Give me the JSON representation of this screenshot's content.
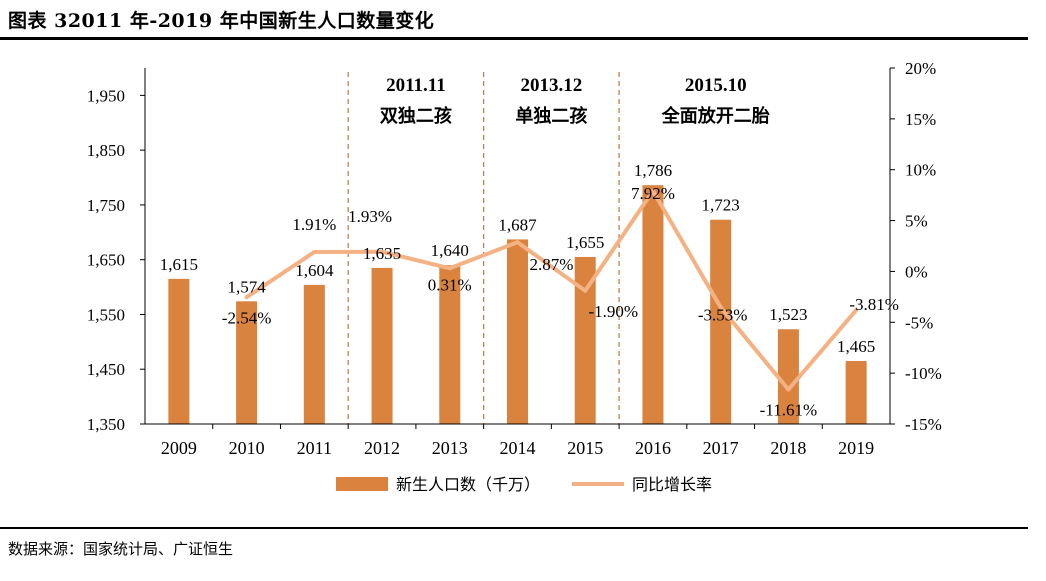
{
  "figure": {
    "title": "图表 32011 年-2019 年中国新生人口数量变化",
    "source": "数据来源：国家统计局、广证恒生"
  },
  "chart_data": {
    "type": "bar",
    "categories": [
      "2009",
      "2010",
      "2011",
      "2012",
      "2013",
      "2014",
      "2015",
      "2016",
      "2017",
      "2018",
      "2019"
    ],
    "series": [
      {
        "name": "新生人口数（千万）",
        "type": "bar",
        "axis": "left",
        "color": "#D9833F",
        "values": [
          1615,
          1574,
          1604,
          1635,
          1640,
          1687,
          1655,
          1786,
          1723,
          1523,
          1465
        ],
        "labels": [
          "1,615",
          "1,574",
          "1,604",
          "1,635",
          "1,640",
          "1,687",
          "1,655",
          "1,786",
          "1,723",
          "1,523",
          "1,465"
        ]
      },
      {
        "name": "同比增长率",
        "type": "line",
        "axis": "right",
        "color": "#F4B183",
        "values": [
          null,
          -2.54,
          1.91,
          1.93,
          0.31,
          2.87,
          -1.9,
          7.92,
          -3.53,
          -11.61,
          -3.81
        ],
        "labels": [
          "",
          "-2.54%",
          "1.91%",
          "1.93%",
          "0.31%",
          "2.87%",
          "-1.90%",
          "7.92%",
          "-3.53%",
          "-11.61%",
          "-3.81%"
        ]
      }
    ],
    "y_left": {
      "ylim": [
        1350,
        2000
      ],
      "ticks": [
        1350,
        1450,
        1550,
        1650,
        1750,
        1850,
        1950
      ],
      "tick_labels": [
        "1,350",
        "1,450",
        "1,550",
        "1,650",
        "1,750",
        "1,850",
        "1,950"
      ]
    },
    "y_right": {
      "ylim": [
        -15,
        20
      ],
      "ticks": [
        -15,
        -10,
        -5,
        0,
        5,
        10,
        15,
        20
      ],
      "tick_labels": [
        "-15%",
        "-10%",
        "-5%",
        "0%",
        "5%",
        "10%",
        "15%",
        "20%"
      ]
    },
    "annotations": [
      {
        "after_category": "2011",
        "date": "2011.11",
        "policy": "双独二孩"
      },
      {
        "after_category": "2013",
        "date": "2013.12",
        "policy": "单独二孩"
      },
      {
        "after_category": "2015",
        "date": "2015.10",
        "policy": "全面放开二胎"
      }
    ],
    "grid": false,
    "legend": "bottom"
  }
}
